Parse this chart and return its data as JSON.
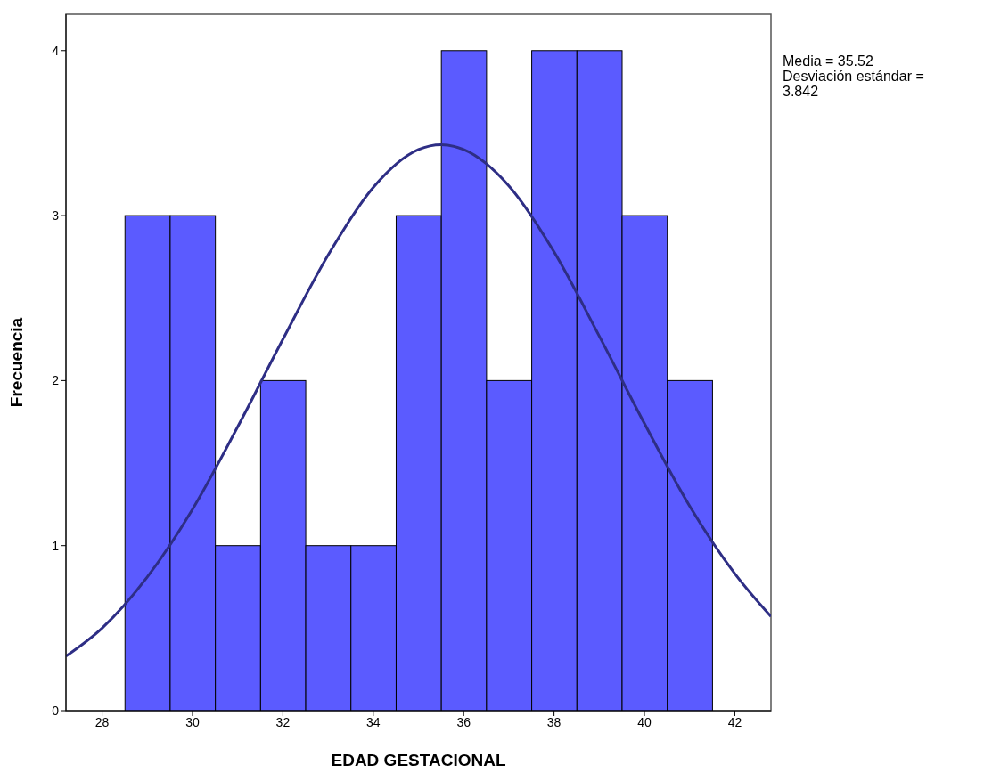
{
  "chart_data": {
    "type": "histogram",
    "xlabel": "EDAD GESTACIONAL",
    "ylabel": "Frecuencia",
    "annotations": [
      "Media = 35.52",
      "Desviación estándar = 3.842"
    ],
    "xlim": [
      27.2,
      42.8
    ],
    "xticks": [
      28,
      30,
      32,
      34,
      36,
      38,
      40,
      42
    ],
    "ylim": [
      0,
      4.22
    ],
    "yticks": [
      0,
      1,
      2,
      3,
      4
    ],
    "series": [
      {
        "color": "#5b5bff",
        "bins": [
          28.5,
          29.5,
          30.5,
          31.5,
          32.5,
          33.5,
          34.5,
          35.5,
          36.5,
          37.5,
          38.5,
          39.5,
          40.5,
          41.5
        ],
        "values": [
          3,
          3,
          1,
          2,
          1,
          1,
          3,
          4,
          2,
          4,
          4,
          3,
          2
        ]
      },
      {
        "type": "line",
        "color": "#2e2e85",
        "x": [
          27.2,
          28,
          29,
          30,
          31,
          32,
          33,
          34,
          35,
          35.5,
          36,
          37,
          38,
          39,
          40,
          41,
          42,
          42.8
        ],
        "values": [
          0.33,
          0.5,
          0.81,
          1.22,
          1.72,
          2.25,
          2.76,
          3.17,
          3.4,
          3.43,
          3.4,
          3.18,
          2.78,
          2.27,
          1.74,
          1.24,
          0.83,
          0.57
        ]
      }
    ]
  }
}
